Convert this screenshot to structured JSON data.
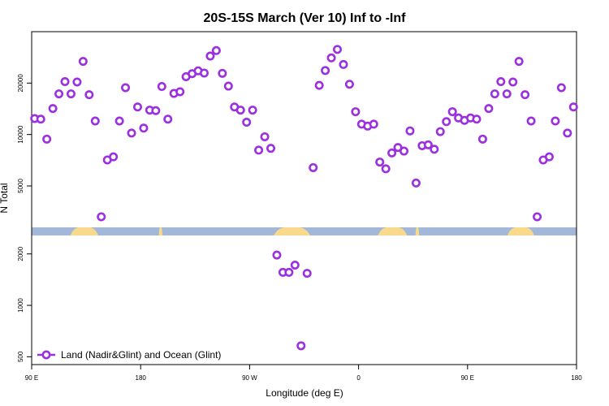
{
  "chart_data": {
    "type": "scatter",
    "title": "20S-15S March (Ver 10)   Inf to -Inf",
    "xlabel": "Longitude (deg E)",
    "ylabel": "N Total",
    "x_ticks": [
      {
        "pos": 0,
        "label": "90 E"
      },
      {
        "pos": 90,
        "label": "180"
      },
      {
        "pos": 180,
        "label": "90 W"
      },
      {
        "pos": 270,
        "label": "0"
      },
      {
        "pos": 360,
        "label": "90 E"
      },
      {
        "pos": 450,
        "label": "180"
      }
    ],
    "xlim": [
      0,
      450
    ],
    "ylim": [
      450,
      40000
    ],
    "y_scale": "log",
    "y_ticks": [
      500,
      1000,
      2000,
      5000,
      10000,
      20000
    ],
    "legend": {
      "position": "bottom-left",
      "label": "Land (Nadir&Glint) and Ocean (Glint)"
    },
    "series": [
      {
        "name": "Land (Nadir&Glint) and Ocean (Glint)",
        "color": "#9b30e0",
        "x": [
          2.5,
          7.5,
          12.5,
          17.5,
          22.5,
          27.5,
          32.5,
          37.5,
          42.5,
          47.5,
          52.5,
          57.5,
          62.5,
          67.5,
          72.5,
          77.5,
          82.5,
          87.5,
          92.5,
          97.5,
          102.5,
          107.5,
          112.5,
          117.5,
          122.5,
          127.5,
          132.5,
          137.5,
          142.5,
          147.5,
          152.5,
          157.5,
          162.5,
          167.5,
          172.5,
          177.5,
          182.5,
          187.5,
          192.5,
          197.5,
          202.5,
          207.5,
          212.5,
          217.5,
          222.5,
          227.5,
          232.5,
          237.5,
          242.5,
          247.5,
          252.5,
          257.5,
          262.5,
          267.5,
          272.5,
          277.5,
          282.5,
          287.5,
          292.5,
          297.5,
          302.5,
          307.5,
          312.5,
          317.5,
          322.5,
          327.5,
          332.5,
          337.5,
          342.5,
          347.5,
          352.5,
          357.5,
          362.5,
          367.5,
          372.5,
          377.5,
          382.5,
          387.5,
          392.5,
          397.5,
          402.5,
          407.5,
          412.5,
          417.5,
          422.5,
          427.5,
          432.5,
          437.5,
          442.5,
          447.5
        ],
        "y": [
          12400,
          12300,
          9400,
          14200,
          17300,
          20400,
          17300,
          20300,
          26800,
          17100,
          12000,
          3300,
          7100,
          7400,
          12000,
          18800,
          10200,
          14500,
          10900,
          13900,
          13800,
          19100,
          12300,
          17400,
          17800,
          21800,
          22700,
          23600,
          22900,
          28800,
          31000,
          22800,
          19200,
          14500,
          13900,
          11800,
          13900,
          8100,
          9700,
          8300,
          1970,
          1560,
          1560,
          1720,
          580,
          1540,
          6400,
          19400,
          23700,
          28100,
          31500,
          25700,
          19700,
          13600,
          11500,
          11200,
          11500,
          6900,
          6300,
          7800,
          8400,
          8000,
          10500,
          5200,
          8600,
          8700,
          8200,
          10400,
          11900,
          13600,
          12500,
          12100,
          12500,
          12300,
          9400,
          14200,
          17300,
          20400,
          17300,
          20300,
          26800,
          17100,
          12000,
          3300,
          7100,
          7400,
          12000,
          18800,
          10200,
          14500
        ]
      }
    ],
    "bands": {
      "ocean_color": "#a3b8d8",
      "land_color": "#f9d98b",
      "land_segments": [
        [
          32,
          55
        ],
        [
          105,
          108
        ],
        [
          200,
          230
        ],
        [
          286,
          310
        ],
        [
          317,
          320
        ],
        [
          393,
          415
        ]
      ]
    }
  }
}
